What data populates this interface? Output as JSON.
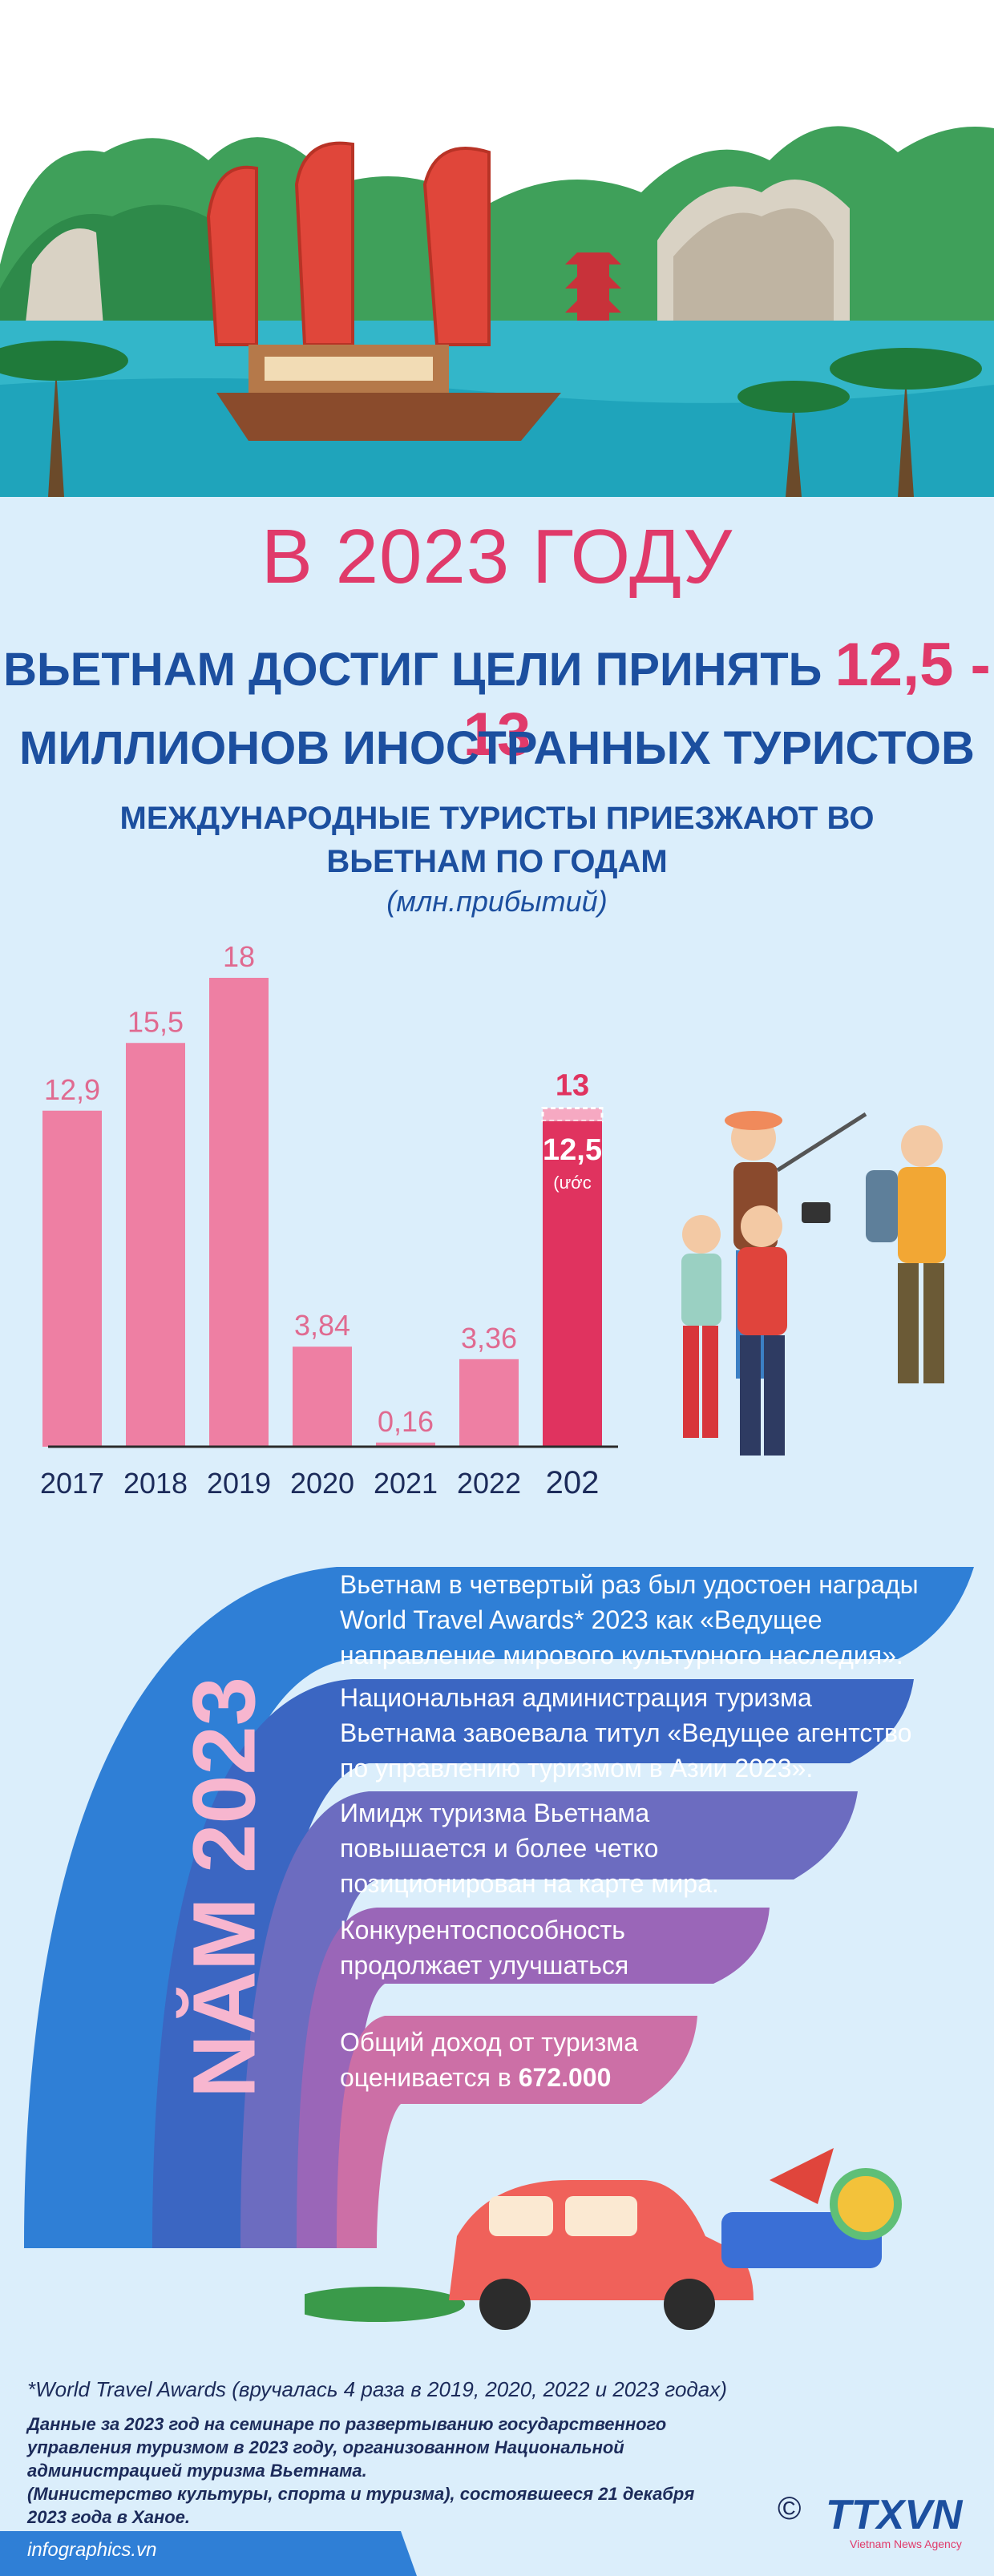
{
  "header": {
    "year_title": "В 2023 ГОДУ",
    "line1_text": "ВЬЕТНАМ ДОСТИГ ЦЕЛИ ПРИНЯТЬ",
    "line1_highlight": "12,5 - 13",
    "line2_text": "МИЛЛИОНОВ ИНОСТРАННЫХ ТУРИСТОВ"
  },
  "chart_data": {
    "type": "bar",
    "title_line1": "МЕЖДУНАРОДНЫЕ ТУРИСТЫ ПРИЕЗЖАЮТ ВО",
    "title_line2": "ВЬЕТНАМ ПО ГОДАМ",
    "unit": "(млн.прибытий)",
    "categories": [
      "2017",
      "2018",
      "2019",
      "2020",
      "2021",
      "2022",
      "202"
    ],
    "values": [
      12.9,
      15.5,
      18,
      3.84,
      0.16,
      3.36,
      12.5
    ],
    "value_labels": [
      "12,9",
      "15,5",
      "18",
      "3,84",
      "0,16",
      "3,36",
      "12,5"
    ],
    "target_value": 13,
    "target_label": "13",
    "estimate_note": "(ước",
    "ylim": [
      0,
      18
    ],
    "colors": {
      "bar": "#ee7fa3",
      "highlight": "#e0335f",
      "axis": "#2b2b2b",
      "label": "#e06a90"
    }
  },
  "achievements": {
    "side_label": "NĂM 2023",
    "items": [
      {
        "text": "Вьетнам в четвертый раз был удостоен награды World Travel Awards* 2023 как «Ведущее направление мирового культурного наследия».",
        "color": "#2f7fd6"
      },
      {
        "text": "Национальная администрация туризма Вьетнама завоевала титул «Ведущее агентство по управлению туризмом в Азии 2023».",
        "color": "#3b66c2"
      },
      {
        "text": "Имидж туризма Вьетнама повышается и более четко позиционирован на карте мира.",
        "color": "#6c6cc0"
      },
      {
        "text": "Конкурентоспособность продолжает улучшаться",
        "color": "#9a66b8"
      },
      {
        "text_prefix": "Общий доход от туризма оценивается в ",
        "text_bold": "672.000",
        "color": "#cc6fa6"
      }
    ]
  },
  "footnotes": {
    "award_note": "*World Travel Awards (вручалась 4 раза в 2019, 2020, 2022 и 2023 годах)",
    "source_1": "Данные за 2023 год на семинаре по развертыванию государственного",
    "source_2": "управления туризмом в 2023 году, организованном Национальной",
    "source_3": "администрацией туризма Вьетнама.",
    "source_4": "(Министерство культуры, спорта и туризма), состоявшееся 21 декабря",
    "source_5": "2023 года в Ханое.",
    "site": "infographics.vn"
  },
  "logo": {
    "text": "TTXVN",
    "sub": "Vietnam News Agency",
    "copyright": "©"
  }
}
